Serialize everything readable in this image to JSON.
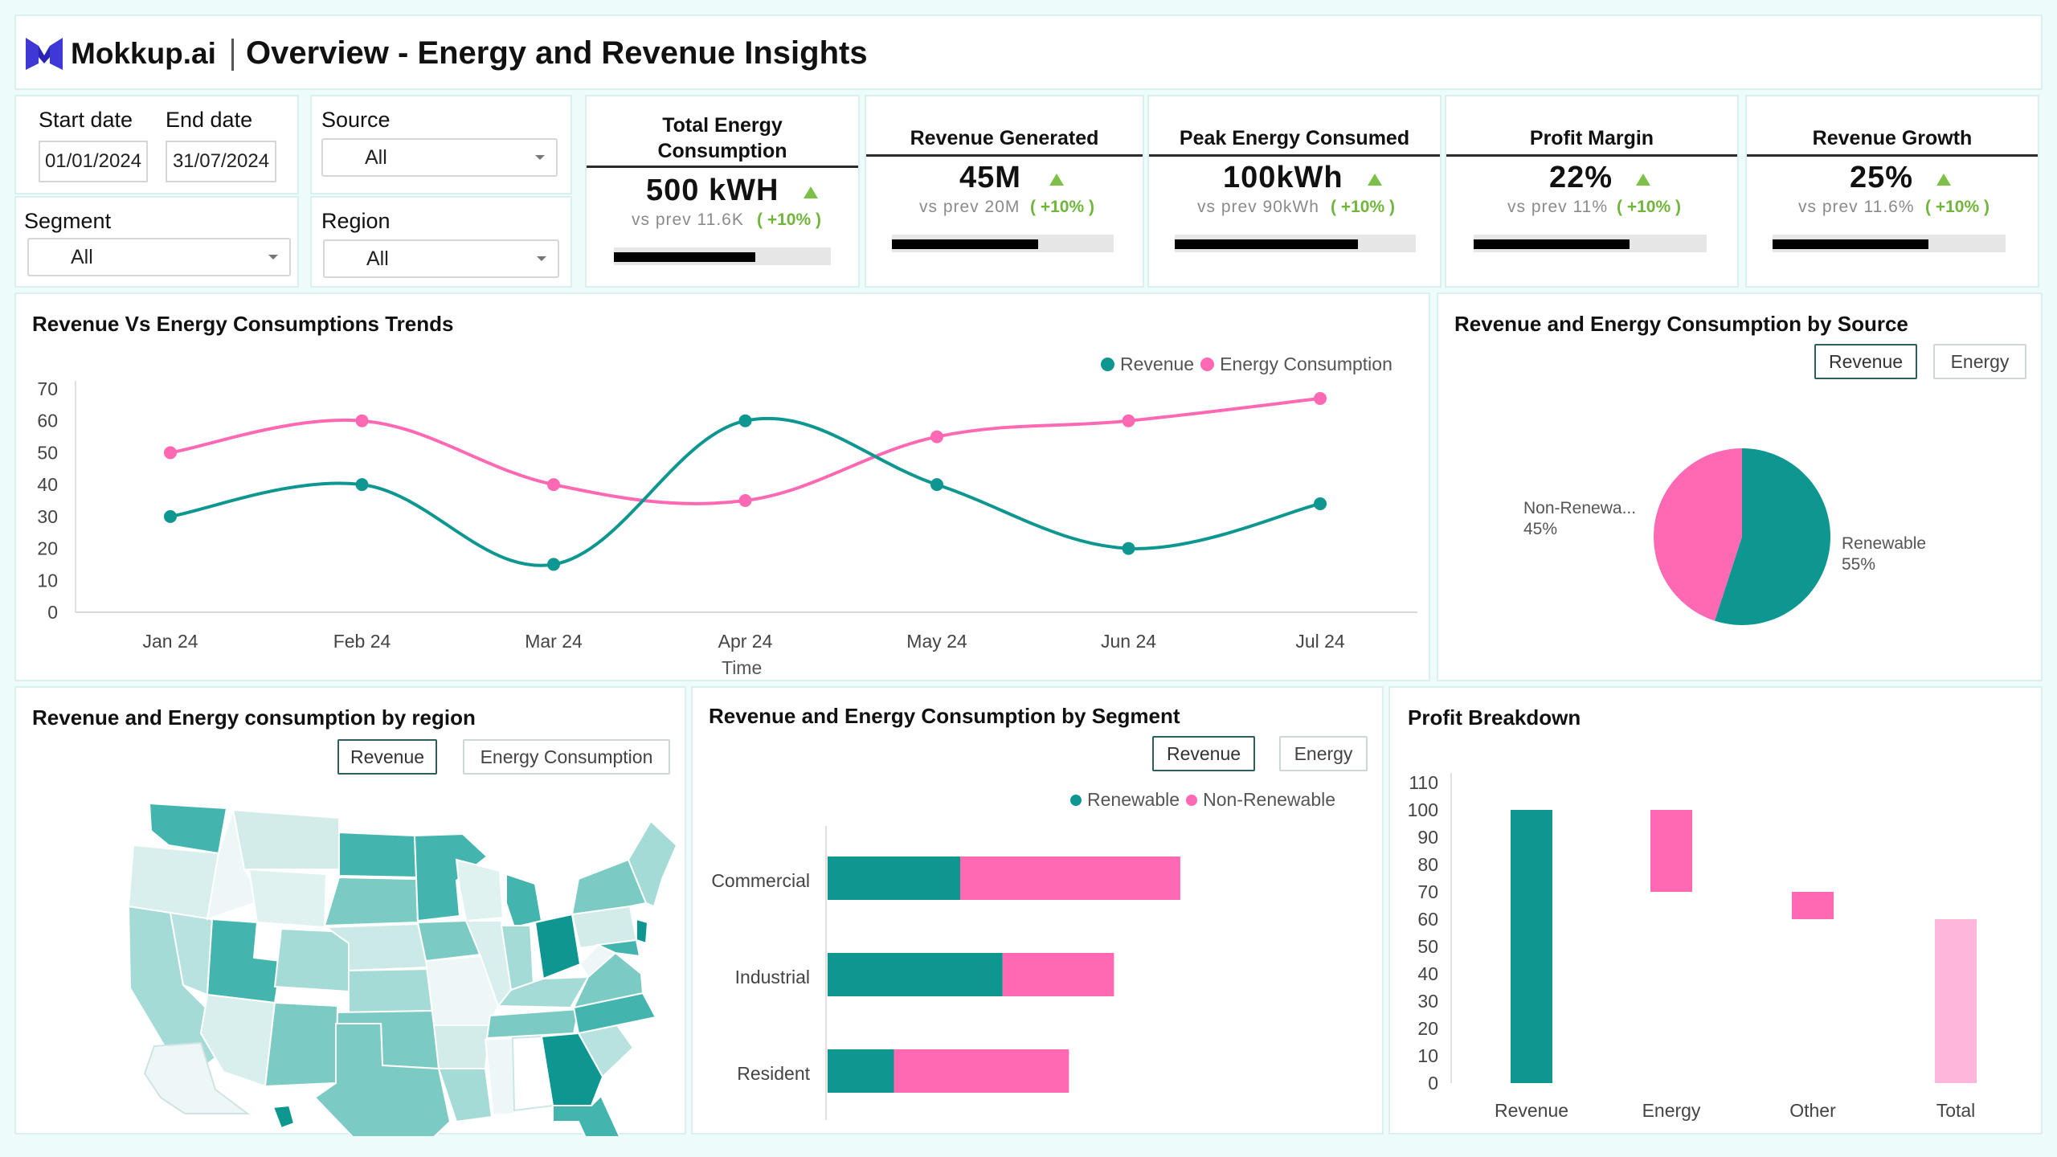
{
  "header": {
    "brand": "Mokkup.ai",
    "title": "Overview - Energy and Revenue Insights"
  },
  "filters": {
    "start_label": "Start date",
    "end_label": "End date",
    "start_value": "01/01/2024",
    "end_value": "31/07/2024",
    "source_label": "Source",
    "source_value": "All",
    "segment_label": "Segment",
    "segment_value": "All",
    "region_label": "Region",
    "region_value": "All"
  },
  "kpis": [
    {
      "title_line1": "Total Energy",
      "title_line2": "Consumption",
      "value": "500 kWH",
      "prev": "vs prev 11.6K",
      "pct": "( +10% )",
      "progress": 0.65
    },
    {
      "title_line1": "Revenue Generated",
      "title_line2": "",
      "value": "45M",
      "prev": "vs prev 20M",
      "pct": "( +10% )",
      "progress": 0.66
    },
    {
      "title_line1": "Peak Energy Consumed",
      "title_line2": "",
      "value": "100kWh",
      "prev": "vs prev 90kWh",
      "pct": "( +10% )",
      "progress": 0.76
    },
    {
      "title_line1": "Profit Margin",
      "title_line2": "",
      "value": "22%",
      "prev": "vs prev 11%",
      "pct": "( +10% )",
      "progress": 0.67
    },
    {
      "title_line1": "Revenue Growth",
      "title_line2": "",
      "value": "25%",
      "prev": "vs prev 11.6%",
      "pct": "( +10% )",
      "progress": 0.67
    }
  ],
  "trend": {
    "title": "Revenue Vs Energy Consumptions Trends",
    "legend_revenue": "Revenue",
    "legend_energy": "Energy Consumption",
    "xlabel": "Time"
  },
  "source_panel": {
    "title": "Revenue and Energy Consumption by Source",
    "btn_revenue": "Revenue",
    "btn_energy": "Energy",
    "label_nonrenew": "Non-Renewa...",
    "pct_nonrenew": "45%",
    "label_renew": "Renewable",
    "pct_renew": "55%"
  },
  "region_panel": {
    "title": "Revenue and Energy consumption by region",
    "btn_revenue": "Revenue",
    "btn_energy": "Energy Consumption"
  },
  "segment_panel": {
    "title": "Revenue and Energy Consumption by Segment",
    "btn_revenue": "Revenue",
    "btn_energy": "Energy",
    "legend_renew": "Renewable",
    "legend_nonrenew": "Non-Renewable"
  },
  "profit_panel": {
    "title": "Profit Breakdown"
  },
  "colors": {
    "teal": "#0e9690",
    "pink": "#ff69b4",
    "light_pink": "#ffb6da",
    "green": "#7cc04a"
  },
  "chart_data": [
    {
      "type": "line",
      "title": "Revenue Vs Energy Consumptions Trends",
      "xlabel": "Time",
      "ylabel": "",
      "categories": [
        "Jan 24",
        "Feb 24",
        "Mar 24",
        "Apr 24",
        "May 24",
        "Jun 24",
        "Jul 24"
      ],
      "ylim": [
        0,
        70
      ],
      "yticks": [
        0,
        10,
        20,
        30,
        40,
        50,
        60,
        70
      ],
      "series": [
        {
          "name": "Revenue",
          "color": "#0e9690",
          "values": [
            30,
            40,
            15,
            60,
            40,
            20,
            34
          ]
        },
        {
          "name": "Energy Consumption",
          "color": "#ff69b4",
          "values": [
            50,
            60,
            40,
            35,
            55,
            60,
            67
          ]
        }
      ],
      "legend": "top-right"
    },
    {
      "type": "pie",
      "title": "Revenue and Energy Consumption by Source",
      "slices": [
        {
          "label": "Renewable",
          "value": 55,
          "color": "#0e9690"
        },
        {
          "label": "Non-Renewa...",
          "value": 45,
          "color": "#ff69b4"
        }
      ]
    },
    {
      "type": "bar",
      "orientation": "horizontal",
      "stacked": true,
      "title": "Revenue and Energy Consumption by Segment",
      "categories": [
        "Commercial",
        "Industrial",
        "Resident"
      ],
      "xlim": [
        0,
        100
      ],
      "series": [
        {
          "name": "Renewable",
          "color": "#0e9690",
          "values": [
            25,
            33,
            12.5
          ]
        },
        {
          "name": "Non-Renewable",
          "color": "#ff69b4",
          "values": [
            41.5,
            21,
            33
          ]
        }
      ],
      "legend": "top-right"
    },
    {
      "type": "bar",
      "subtype": "waterfall",
      "title": "Profit Breakdown",
      "categories": [
        "Revenue",
        "Energy",
        "Other",
        "Total"
      ],
      "ylim": [
        0,
        110
      ],
      "yticks": [
        0,
        10,
        20,
        30,
        40,
        50,
        60,
        70,
        80,
        90,
        100,
        110
      ],
      "bars": [
        {
          "label": "Revenue",
          "low": 0,
          "high": 100,
          "color": "#0e9690"
        },
        {
          "label": "Energy",
          "low": 70,
          "high": 100,
          "color": "#ff69b4"
        },
        {
          "label": "Other",
          "low": 60,
          "high": 70,
          "color": "#ff69b4"
        },
        {
          "label": "Total",
          "low": 0,
          "high": 60,
          "color": "#ffb6da"
        }
      ]
    }
  ]
}
